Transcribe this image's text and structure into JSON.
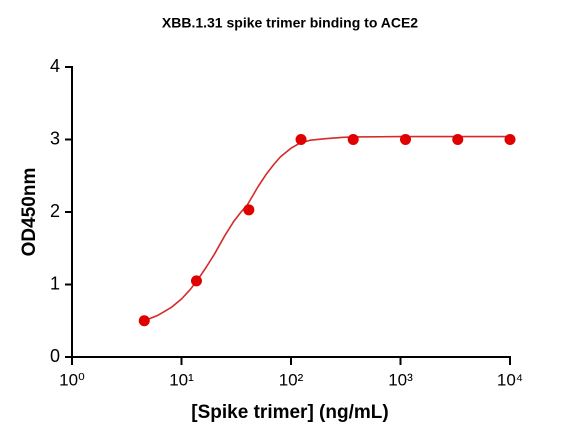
{
  "chart_data": {
    "type": "scatter",
    "title": "XBB.1.31 spike trimer binding to ACE2",
    "xlabel": "[Spike trimer] (ng/mL)",
    "ylabel": "OD450nm",
    "xscale": "log",
    "xlim": [
      1,
      10000
    ],
    "ylim": [
      0,
      4
    ],
    "xticks": [
      {
        "value": 1,
        "label": "10⁰"
      },
      {
        "value": 10,
        "label": "10¹"
      },
      {
        "value": 100,
        "label": "10²"
      },
      {
        "value": 1000,
        "label": "10³"
      },
      {
        "value": 10000,
        "label": "10⁴"
      }
    ],
    "yticks": [
      0,
      1,
      2,
      3,
      4
    ],
    "series": [
      {
        "type": "scatter",
        "color": "#e00000",
        "x": [
          4.57,
          13.7,
          41.2,
          123.5,
          370,
          1111,
          3333,
          10000
        ],
        "values": [
          0.5,
          1.05,
          2.03,
          3.0,
          3.0,
          3.0,
          3.0,
          3.0
        ]
      },
      {
        "type": "line",
        "color": "#d42a2a",
        "x": [
          4.57,
          6,
          8,
          10,
          12,
          14,
          17,
          20,
          25,
          30,
          35,
          40,
          50,
          60,
          70,
          80,
          100,
          120,
          150,
          200,
          300,
          400,
          1000,
          10000
        ],
        "values": [
          0.5,
          0.57,
          0.68,
          0.8,
          0.93,
          1.06,
          1.25,
          1.42,
          1.68,
          1.87,
          2.0,
          2.1,
          2.35,
          2.53,
          2.66,
          2.76,
          2.88,
          2.95,
          2.99,
          3.01,
          3.03,
          3.035,
          3.04,
          3.04
        ]
      }
    ]
  }
}
